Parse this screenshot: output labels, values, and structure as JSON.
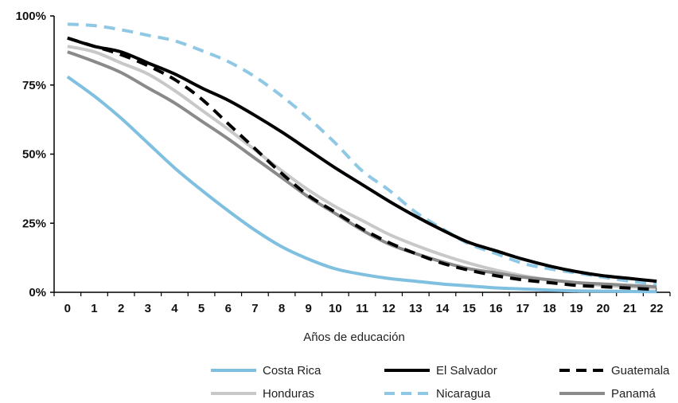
{
  "chart_data": {
    "type": "line",
    "title": "",
    "xlabel": "Años de educación",
    "ylabel": "",
    "x": [
      0,
      1,
      2,
      3,
      4,
      5,
      6,
      7,
      8,
      9,
      10,
      11,
      12,
      13,
      14,
      15,
      16,
      17,
      18,
      19,
      20,
      21,
      22
    ],
    "xlim": [
      0,
      22
    ],
    "ylim": [
      0,
      100
    ],
    "yticks": [
      0,
      25,
      50,
      75,
      100
    ],
    "ytick_labels": [
      "0%",
      "25%",
      "50%",
      "75%",
      "100%"
    ],
    "grid": false,
    "legend_position": "bottom",
    "series": [
      {
        "name": "Costa Rica",
        "color": "#7fbfdf",
        "dash": "solid",
        "values": [
          78,
          71,
          63,
          54,
          45,
          37,
          29.5,
          22.5,
          16.5,
          12,
          8.5,
          6.5,
          5,
          4,
          3,
          2.3,
          1.6,
          1.2,
          0.8,
          0.5,
          0.4,
          0.3,
          0.2
        ]
      },
      {
        "name": "El Salvador",
        "color": "#000000",
        "dash": "solid",
        "values": [
          92,
          89,
          87,
          83,
          79,
          74,
          69.5,
          64,
          58,
          51.5,
          45,
          39,
          33,
          27.5,
          22.5,
          18,
          15,
          12,
          9.5,
          7.5,
          6,
          5,
          4
        ]
      },
      {
        "name": "Guatemala",
        "color": "#000000",
        "dash": "dashed",
        "values": [
          92,
          89,
          86,
          82,
          77,
          70,
          61,
          52,
          43,
          35,
          29,
          23,
          18,
          14,
          10.5,
          8,
          6,
          4.5,
          3.5,
          2.5,
          2,
          1.5,
          1
        ]
      },
      {
        "name": "Honduras",
        "color": "#c8c8c8",
        "dash": "solid",
        "values": [
          89,
          87,
          83,
          79,
          73,
          66,
          59,
          51.5,
          44,
          37,
          31,
          26,
          21,
          17,
          13.5,
          10.5,
          8,
          6,
          4.5,
          3.5,
          2.5,
          2,
          1.5
        ]
      },
      {
        "name": "Nicaragua",
        "color": "#8fc8e4",
        "dash": "dashed",
        "values": [
          97,
          96.5,
          95,
          93,
          91,
          87.5,
          83.5,
          78,
          71,
          63,
          54,
          44,
          37,
          29,
          23,
          17.5,
          14,
          10.5,
          8.5,
          7,
          5.5,
          4,
          3
        ]
      },
      {
        "name": "Panamá",
        "color": "#8a8a8a",
        "dash": "solid",
        "values": [
          87,
          83.5,
          79.5,
          74,
          68.5,
          62,
          55.5,
          48.5,
          41.5,
          34.5,
          28.5,
          22.5,
          17.5,
          14,
          11,
          8.5,
          7,
          5.5,
          4.5,
          3.5,
          3,
          2.5,
          2
        ]
      }
    ]
  }
}
